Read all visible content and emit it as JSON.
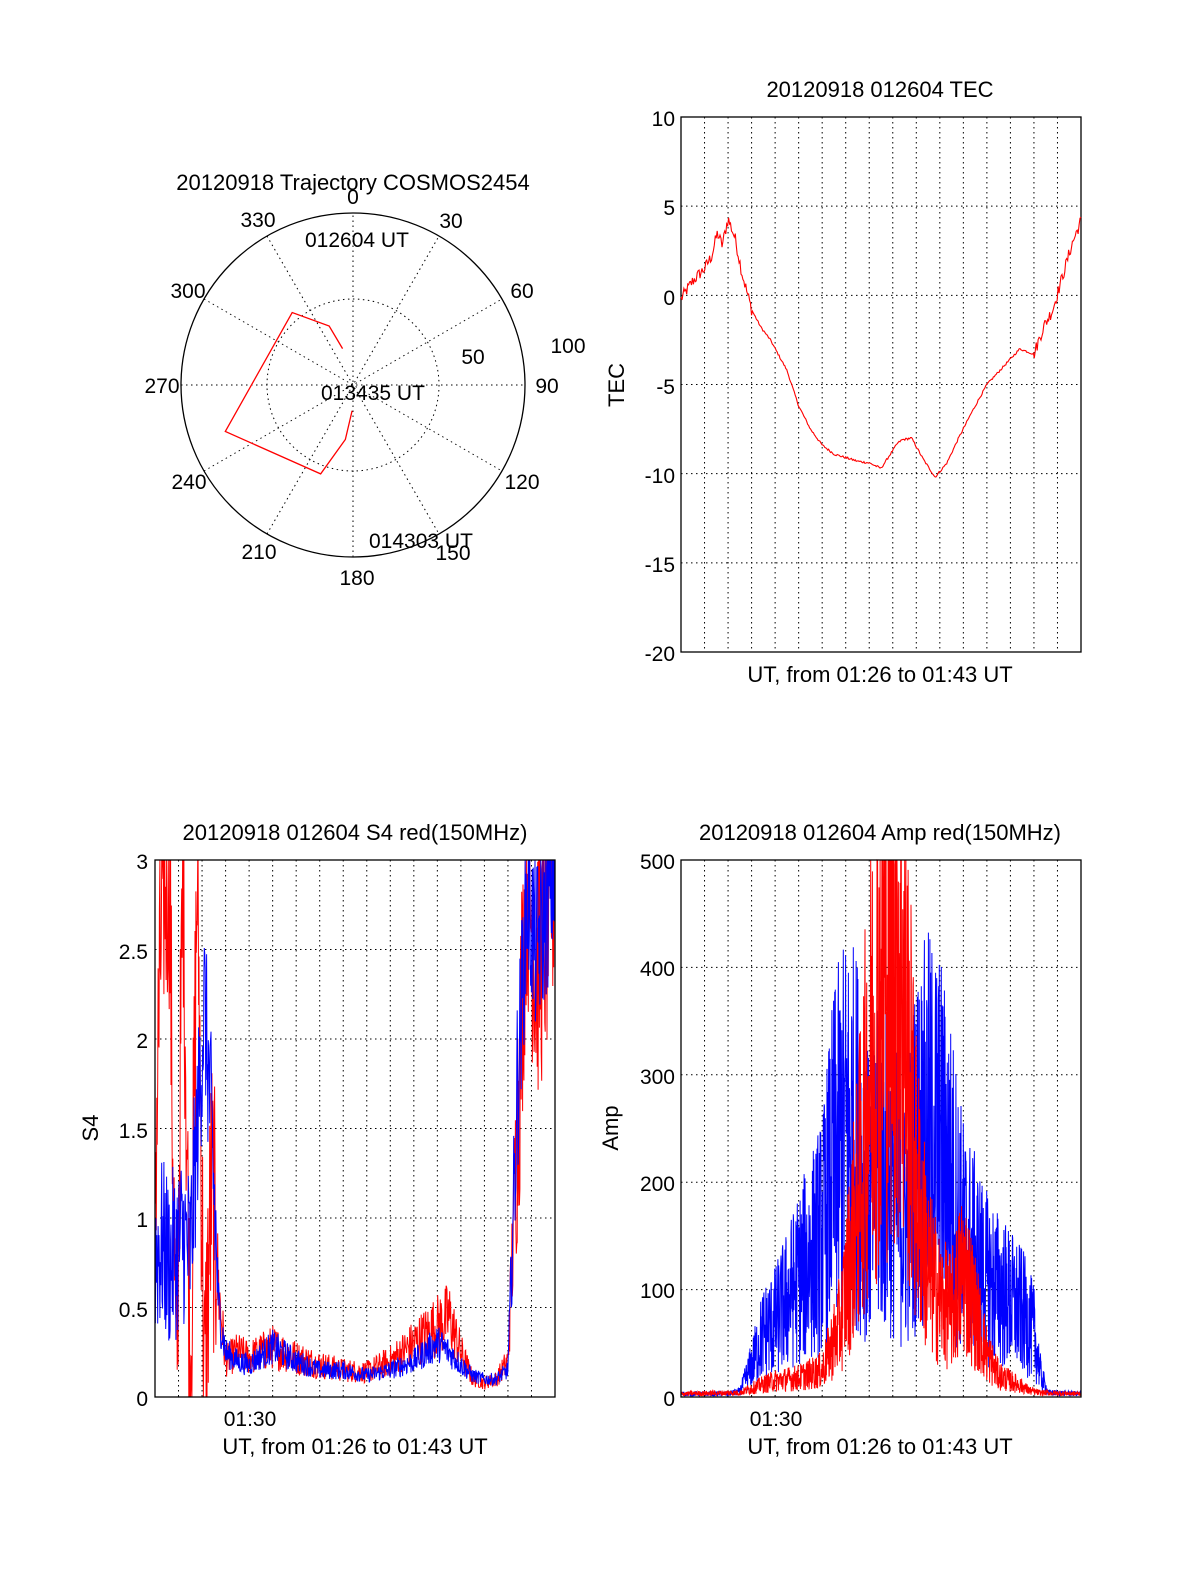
{
  "chart_data": [
    {
      "type": "polar",
      "title": "20120918 Trajectory COSMOS2454",
      "angle_labels": [
        "0",
        "30",
        "60",
        "90",
        "120",
        "150",
        "180",
        "210",
        "240",
        "270",
        "300",
        "330"
      ],
      "radius_labels": [
        "50",
        "100"
      ],
      "rlim": [
        0,
        100
      ],
      "grid": true,
      "series": [
        {
          "color": "#ff0000",
          "points": [
            {
              "az": 344,
              "el": 22
            },
            {
              "az": 338,
              "el": 37
            },
            {
              "az": 320,
              "el": 55
            },
            {
              "az": 250,
              "el": 79
            },
            {
              "az": 200,
              "el": 55
            },
            {
              "az": 188,
              "el": 32
            },
            {
              "az": 182,
              "el": 15
            }
          ]
        }
      ],
      "annotations": [
        "012604 UT",
        "013435 UT",
        "014303 UT"
      ]
    },
    {
      "type": "line",
      "title": "20120918 012604 TEC",
      "xlabel": "UT, from 01:26 to 01:43 UT",
      "ylabel": "TEC",
      "ylim": [
        -20,
        10
      ],
      "yticks": [
        "10",
        "5",
        "0",
        "-5",
        "-10",
        "-15",
        "-20"
      ],
      "xlim": [
        0,
        17
      ],
      "grid": true,
      "series": [
        {
          "color": "#ff0000",
          "x": [
            0,
            0.5,
            1.0,
            1.3,
            1.55,
            1.75,
            2.0,
            2.3,
            2.6,
            3.0,
            3.4,
            3.8,
            4.5,
            5.0,
            5.5,
            6.0,
            6.5,
            7.0,
            7.5,
            8.0,
            8.5,
            9.0,
            9.2,
            9.4,
            9.8,
            10.3,
            10.8,
            11.3,
            11.8,
            12.3,
            13.0,
            13.7,
            14.4,
            15.0,
            15.4,
            15.8,
            16.2,
            16.6,
            17.0
          ],
          "y": [
            -0.2,
            0.8,
            1.5,
            2.2,
            3.5,
            2.8,
            4.3,
            3.2,
            1.2,
            -0.8,
            -1.8,
            -2.5,
            -4.2,
            -6.2,
            -7.5,
            -8.4,
            -8.9,
            -9.1,
            -9.3,
            -9.4,
            -9.7,
            -8.7,
            -8.3,
            -8.1,
            -8.0,
            -9.2,
            -10.2,
            -9.4,
            -8.0,
            -6.7,
            -5.0,
            -4.0,
            -3.0,
            -3.3,
            -1.8,
            -0.8,
            1.0,
            2.8,
            4.2
          ]
        }
      ]
    },
    {
      "type": "line",
      "title": "20120918 012604 S4 red(150MHz)",
      "xlabel": "UT, from 01:26 to 01:43 UT",
      "ylabel": "S4",
      "ylim": [
        0,
        3
      ],
      "yticks": [
        "3",
        "2.5",
        "2",
        "1.5",
        "1",
        "0.5",
        "0"
      ],
      "xticks": [
        "01:30"
      ],
      "xlim": [
        0,
        17
      ],
      "grid": true,
      "series": [
        {
          "color": "#ff0000",
          "x": [
            0,
            0.3,
            0.6,
            0.9,
            1.2,
            1.5,
            1.8,
            2.1,
            2.4,
            2.7,
            3.0,
            3.5,
            4.0,
            5.0,
            6.0,
            7.0,
            8.0,
            9.0,
            10.0,
            11.0,
            11.5,
            12.0,
            12.5,
            13.0,
            13.5,
            14.0,
            14.5,
            15.0,
            15.4,
            15.8,
            16.2,
            16.6,
            17.0
          ],
          "y": [
            1.2,
            2.8,
            3.0,
            0.0,
            3.0,
            0.0,
            3.0,
            0.0,
            1.2,
            0.6,
            0.2,
            0.25,
            0.22,
            0.28,
            0.22,
            0.18,
            0.15,
            0.14,
            0.2,
            0.3,
            0.35,
            0.4,
            0.45,
            0.25,
            0.1,
            0.08,
            0.1,
            0.2,
            1.5,
            3.0,
            2.4,
            2.6,
            3.0
          ]
        },
        {
          "color": "#0000ff",
          "x": [
            0,
            0.3,
            0.6,
            0.9,
            1.2,
            1.5,
            1.8,
            2.1,
            2.4,
            2.7,
            3.0,
            3.5,
            4.0,
            5.0,
            6.0,
            7.0,
            8.0,
            9.0,
            10.0,
            11.0,
            11.5,
            12.0,
            12.5,
            13.0,
            13.5,
            14.0,
            14.5,
            15.0,
            15.4,
            15.8,
            16.2,
            16.6,
            17.0
          ],
          "y": [
            0.8,
            0.85,
            0.75,
            0.82,
            0.9,
            0.8,
            1.5,
            2.2,
            1.5,
            0.5,
            0.25,
            0.2,
            0.18,
            0.28,
            0.2,
            0.15,
            0.15,
            0.12,
            0.15,
            0.2,
            0.25,
            0.3,
            0.25,
            0.18,
            0.12,
            0.1,
            0.1,
            0.15,
            1.7,
            2.8,
            2.5,
            2.7,
            3.0
          ]
        }
      ]
    },
    {
      "type": "line",
      "title": "20120918 012604 Amp red(150MHz)",
      "xlabel": "UT, from 01:26 to 01:43 UT",
      "ylabel": "Amp",
      "ylim": [
        0,
        500
      ],
      "yticks": [
        "500",
        "400",
        "300",
        "200",
        "100",
        "0"
      ],
      "xticks": [
        "01:30"
      ],
      "xlim": [
        0,
        17
      ],
      "grid": true,
      "series": [
        {
          "color": "#ff0000",
          "x": [
            0,
            2.5,
            3.0,
            3.5,
            4.0,
            5.0,
            6.0,
            6.8,
            7.5,
            8.0,
            8.5,
            9.0,
            9.3,
            9.6,
            10.0,
            10.5,
            11.0,
            11.5,
            12.0,
            12.5,
            13.0,
            13.5,
            14.0,
            14.5,
            14.8,
            15.2,
            17.0
          ],
          "y": [
            3,
            4,
            8,
            12,
            15,
            18,
            25,
            70,
            180,
            300,
            380,
            440,
            420,
            330,
            200,
            120,
            90,
            80,
            120,
            80,
            40,
            20,
            15,
            10,
            6,
            4,
            3
          ]
        },
        {
          "color": "#0000ff",
          "x": [
            0,
            2.0,
            2.5,
            3.0,
            3.5,
            4.0,
            5.0,
            6.0,
            6.5,
            7.0,
            7.5,
            8.0,
            8.5,
            9.0,
            9.5,
            10.0,
            10.5,
            11.0,
            11.5,
            12.0,
            12.5,
            13.0,
            13.5,
            14.0,
            14.5,
            15.0,
            15.3,
            15.6,
            17.0
          ],
          "y": [
            3,
            3,
            5,
            30,
            60,
            70,
            110,
            150,
            220,
            250,
            240,
            180,
            220,
            200,
            160,
            230,
            250,
            240,
            200,
            150,
            130,
            110,
            100,
            90,
            80,
            60,
            20,
            4,
            3
          ]
        }
      ]
    }
  ]
}
